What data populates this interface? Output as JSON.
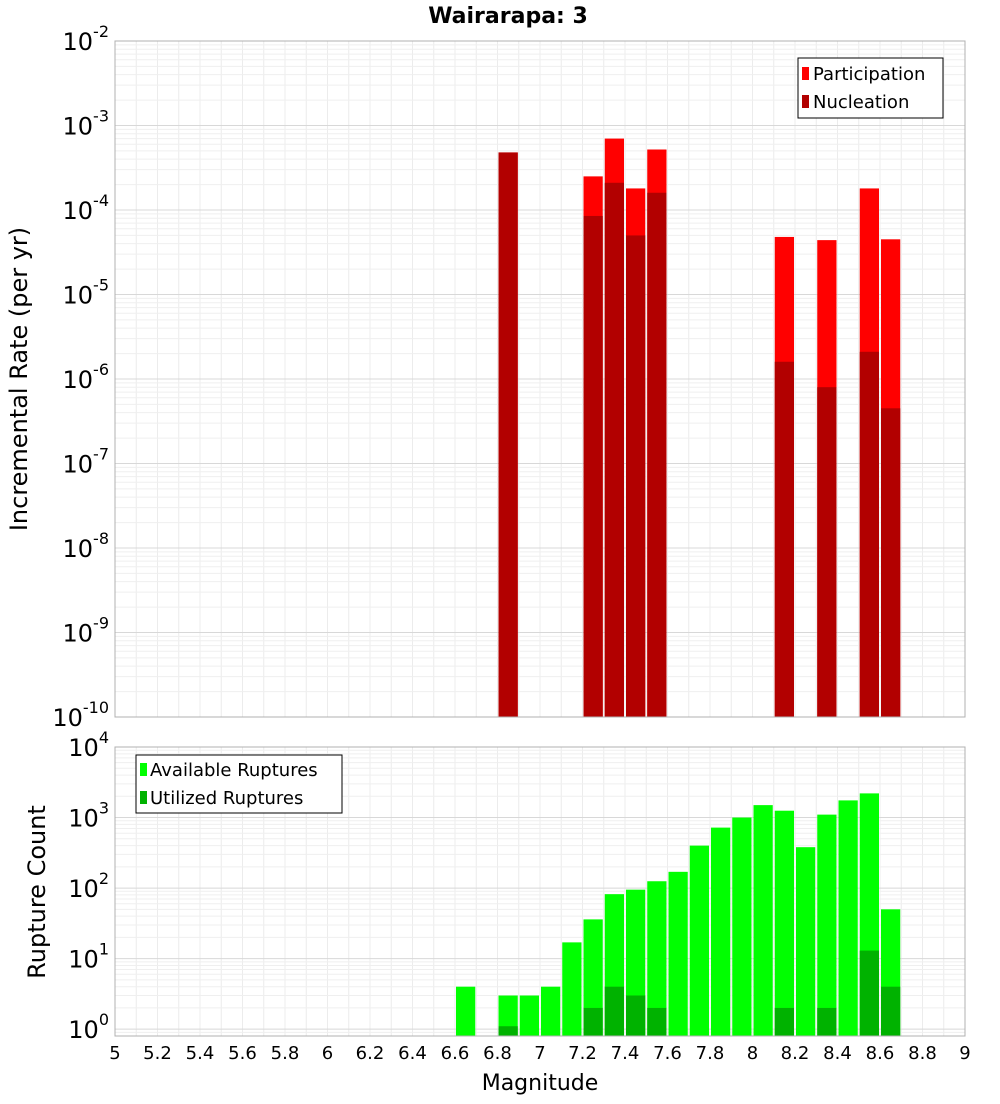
{
  "chart_data": [
    {
      "type": "bar",
      "title": "Wairarapa: 3",
      "ylabel": "Incremental Rate (per yr)",
      "xlabel": "",
      "xlim": [
        5,
        9
      ],
      "ylim": [
        1e-10,
        0.01
      ],
      "yscale": "log",
      "ytick_exponents": [
        "-2",
        "-3",
        "-4",
        "-5",
        "-6",
        "-7",
        "-8",
        "-9",
        "-10"
      ],
      "ytick_base": "10",
      "grid": true,
      "legend_position": "top-right",
      "bin_width": 0.1,
      "x": [
        6.85,
        7.25,
        7.35,
        7.45,
        7.55,
        8.15,
        8.35,
        8.55,
        8.65
      ],
      "series": [
        {
          "name": "Participation",
          "color": "#ff0000",
          "values": [
            0.00048,
            0.00025,
            0.0007,
            0.00018,
            0.00052,
            4.8e-05,
            4.4e-05,
            0.00018,
            4.5e-05
          ]
        },
        {
          "name": "Nucleation",
          "color": "#b20000",
          "values": [
            0.00048,
            8.5e-05,
            0.00021,
            5e-05,
            0.00016,
            1.6e-06,
            8e-07,
            2.1e-06,
            4.5e-07
          ]
        }
      ]
    },
    {
      "type": "bar",
      "title": "",
      "ylabel": "Rupture Count",
      "xlabel": "Magnitude",
      "xlim": [
        5,
        9
      ],
      "ylim": [
        0.8,
        10000.0
      ],
      "yscale": "log",
      "ytick_exponents": [
        "4",
        "3",
        "2",
        "1",
        "0"
      ],
      "ytick_base": "10",
      "xticks": [
        "5",
        "5.2",
        "5.4",
        "5.6",
        "5.8",
        "6",
        "6.2",
        "6.4",
        "6.6",
        "6.8",
        "7",
        "7.2",
        "7.4",
        "7.6",
        "7.8",
        "8",
        "8.2",
        "8.4",
        "8.6",
        "8.8",
        "9"
      ],
      "grid": true,
      "legend_position": "top-left",
      "bin_width": 0.1,
      "series": [
        {
          "name": "Available Ruptures",
          "color": "#00ff00",
          "x": [
            6.65,
            6.85,
            6.95,
            7.05,
            7.15,
            7.25,
            7.35,
            7.45,
            7.55,
            7.65,
            7.75,
            7.85,
            7.95,
            8.05,
            8.15,
            8.25,
            8.35,
            8.45,
            8.55,
            8.65
          ],
          "values": [
            4,
            3,
            3,
            4,
            17,
            36,
            82,
            95,
            125,
            170,
            400,
            720,
            1000,
            1500,
            1250,
            380,
            1100,
            1750,
            2200,
            50
          ]
        },
        {
          "name": "Utilized Ruptures",
          "color": "#00b200",
          "x": [
            6.85,
            7.25,
            7.35,
            7.45,
            7.55,
            8.15,
            8.35,
            8.55,
            8.65
          ],
          "values": [
            1.1,
            2,
            4,
            3,
            2,
            2,
            2,
            13,
            4
          ]
        }
      ]
    }
  ]
}
